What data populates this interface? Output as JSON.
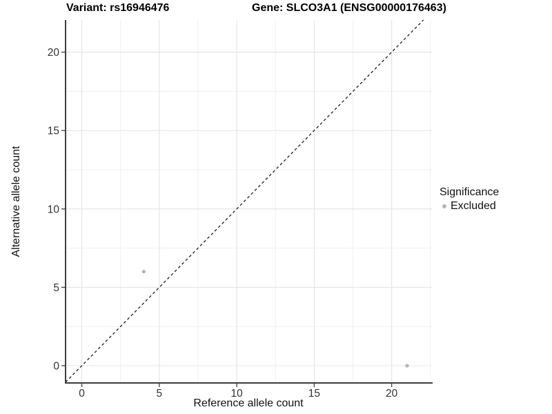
{
  "chart_data": {
    "type": "scatter",
    "title_left": "Variant: rs16946476",
    "title_right": "Gene: SLCO3A1 (ENSG00000176463)",
    "xlabel": "Reference allele count",
    "ylabel": "Alternative allele count",
    "xlim": [
      -1.05,
      22.6
    ],
    "ylim": [
      -1.1,
      22.05
    ],
    "x_ticks": [
      0,
      5,
      10,
      15,
      20
    ],
    "y_ticks": [
      0,
      5,
      10,
      15,
      20
    ],
    "x_minor": [
      2.5,
      7.5,
      12.5,
      17.5,
      22.5
    ],
    "y_minor": [
      2.5,
      7.5,
      12.5,
      17.5
    ],
    "grid": true,
    "identity_line": {
      "style": "dashed",
      "color": "#1a1a1a",
      "from": -1.05,
      "to": 22.05
    },
    "series": [
      {
        "name": "Excluded",
        "color": "#b4b4b4",
        "points": [
          {
            "x": 4,
            "y": 6
          },
          {
            "x": 21,
            "y": 0
          }
        ]
      }
    ],
    "legend": {
      "title": "Significance",
      "position": "right",
      "items": [
        {
          "label": "Excluded",
          "color": "#b4b4b4"
        }
      ]
    },
    "colors": {
      "background": "#ffffff",
      "grid_major": "#e4e4e4",
      "grid_minor": "#f0f0f0",
      "axis_line": "#3c3c3c",
      "tick_label": "#333333",
      "point": "#b4b4b4"
    }
  }
}
